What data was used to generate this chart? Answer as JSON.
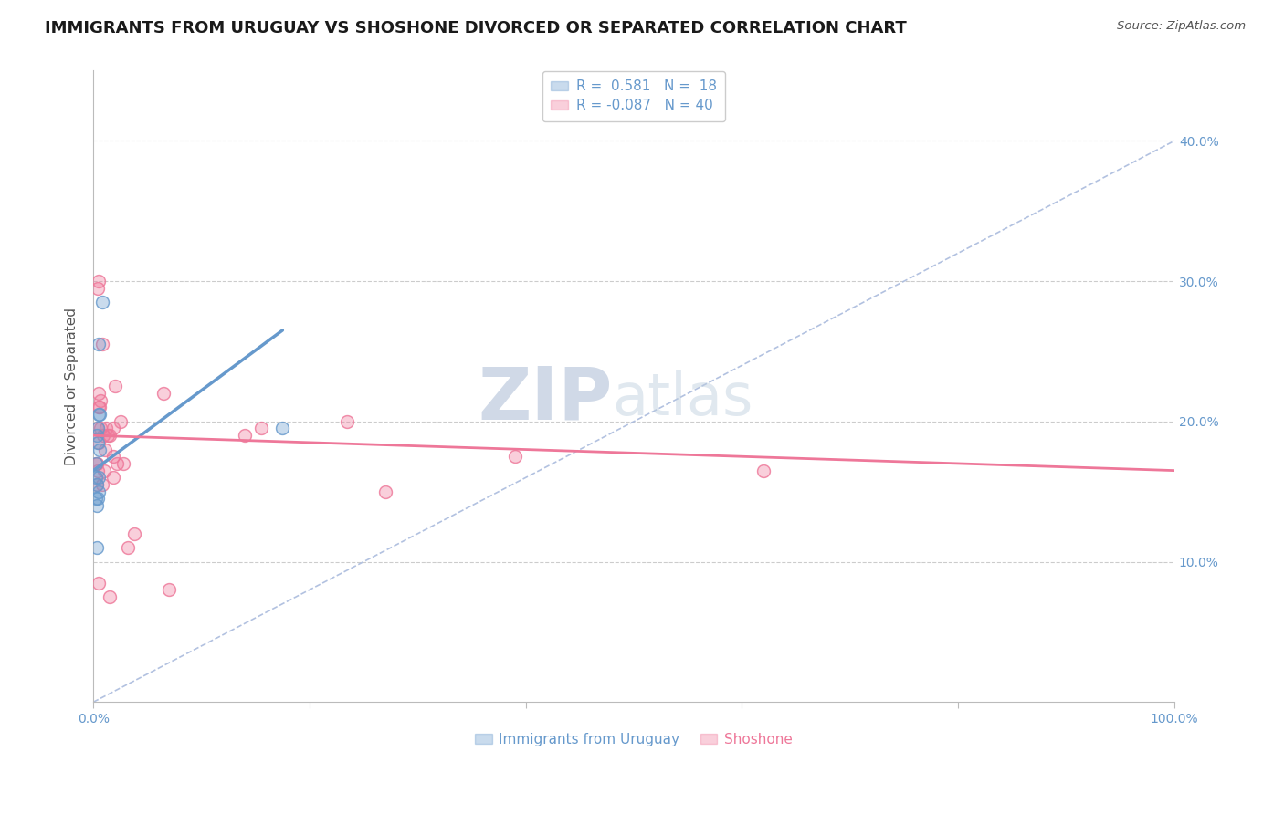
{
  "title": "IMMIGRANTS FROM URUGUAY VS SHOSHONE DIVORCED OR SEPARATED CORRELATION CHART",
  "source": "Source: ZipAtlas.com",
  "ylabel": "Divorced or Separated",
  "xlim": [
    0,
    100
  ],
  "ylim": [
    0,
    45
  ],
  "ytick_vals": [
    0,
    10,
    20,
    30,
    40
  ],
  "xtick_vals": [
    0,
    20,
    40,
    60,
    80,
    100
  ],
  "blue_R": 0.581,
  "blue_N": 18,
  "pink_R": -0.087,
  "pink_N": 40,
  "blue_color": "#6699CC",
  "pink_color": "#EE7799",
  "blue_label": "Immigrants from Uruguay",
  "pink_label": "Shoshone",
  "blue_scatter_x": [
    0.3,
    0.5,
    0.2,
    0.4,
    0.6,
    0.3,
    0.5,
    0.8,
    0.4,
    0.2,
    0.3,
    0.6,
    0.5,
    0.3,
    0.4,
    0.2,
    17.5,
    0.5
  ],
  "blue_scatter_y": [
    19.0,
    25.5,
    17.0,
    18.5,
    20.5,
    15.5,
    16.0,
    28.5,
    19.5,
    14.5,
    14.0,
    18.0,
    20.5,
    11.0,
    14.5,
    16.0,
    19.5,
    15.0
  ],
  "pink_scatter_x": [
    0.4,
    0.5,
    1.5,
    2.0,
    0.8,
    0.5,
    1.8,
    1.2,
    2.8,
    0.3,
    0.7,
    0.5,
    0.9,
    0.3,
    1.8,
    1.3,
    0.8,
    0.4,
    2.5,
    0.6,
    14.0,
    15.5,
    27.0,
    23.5,
    0.5,
    1.0,
    0.3,
    6.5,
    39.0,
    62.0,
    2.2,
    3.8,
    1.5,
    0.5,
    3.2,
    1.8,
    0.4,
    7.0,
    1.1,
    0.7
  ],
  "pink_scatter_y": [
    29.5,
    30.0,
    19.0,
    22.5,
    25.5,
    22.0,
    16.0,
    19.5,
    17.0,
    15.5,
    21.5,
    18.5,
    19.0,
    17.0,
    19.5,
    19.0,
    15.5,
    19.5,
    20.0,
    21.0,
    19.0,
    19.5,
    15.0,
    20.0,
    21.0,
    16.5,
    17.0,
    22.0,
    17.5,
    16.5,
    17.0,
    12.0,
    7.5,
    8.5,
    11.0,
    17.5,
    16.5,
    8.0,
    18.0,
    19.5
  ],
  "blue_trend_x": [
    0.0,
    17.5
  ],
  "blue_trend_y": [
    16.5,
    26.5
  ],
  "pink_trend_x": [
    0.0,
    100.0
  ],
  "pink_trend_y": [
    19.0,
    16.5
  ],
  "diag_line_x": [
    0,
    100
  ],
  "diag_line_y": [
    0,
    40
  ],
  "diag_color": "#AABBDD",
  "grid_color": "#CCCCCC",
  "bg_color": "#FFFFFF",
  "watermark_zip": "ZIP",
  "watermark_atlas": "atlas",
  "title_fontsize": 13,
  "axis_label_fontsize": 11,
  "tick_fontsize": 10,
  "legend_fontsize": 11
}
